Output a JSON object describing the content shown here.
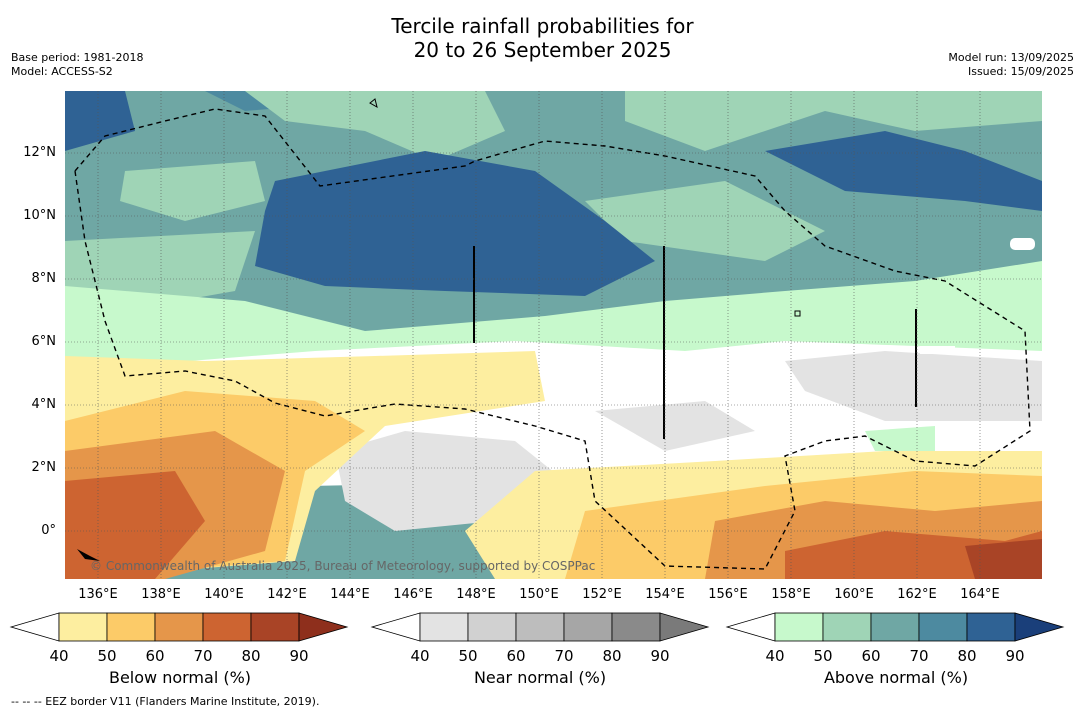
{
  "title": {
    "line1": "Tercile rainfall probabilities for",
    "line2": "20 to 26 September 2025"
  },
  "meta_left": {
    "base_period": "Base period: 1981-2018",
    "model": "Model: ACCESS-S2"
  },
  "meta_right": {
    "model_run": "Model run: 13/09/2025",
    "issued": "Issued: 15/09/2025"
  },
  "map": {
    "lon_labels": [
      "136°E",
      "138°E",
      "140°E",
      "142°E",
      "144°E",
      "146°E",
      "148°E",
      "150°E",
      "152°E",
      "154°E",
      "156°E",
      "158°E",
      "160°E",
      "162°E",
      "164°E"
    ],
    "lat_labels": [
      "12°N",
      "10°N",
      "8°N",
      "6°N",
      "4°N",
      "2°N",
      "0°"
    ],
    "copyright": "© Commonwealth of Australia 2025, Bureau of Meteorology, supported by COSPPac",
    "colors": {
      "below": [
        "#fdeea0",
        "#fccb68",
        "#e5964a",
        "#cd6431",
        "#a94426",
        "#8e2f1c"
      ],
      "near": [
        "#e3e3e3",
        "#d1d1d1",
        "#bdbdbd",
        "#a6a6a6",
        "#8a8a8a"
      ],
      "above": [
        "#c7f9cc",
        "#9fd4b6",
        "#6fa7a4",
        "#4d8aa0",
        "#2f6294",
        "#1a3f7a"
      ]
    }
  },
  "colorbars": {
    "ticks": [
      "40",
      "50",
      "60",
      "70",
      "80",
      "90"
    ],
    "below_label": "Below normal (%)",
    "near_label": "Near normal (%)",
    "above_label": "Above normal (%)"
  },
  "footnote": "--  --  -- EEZ border V11 (Flanders Marine Institute, 2019)."
}
